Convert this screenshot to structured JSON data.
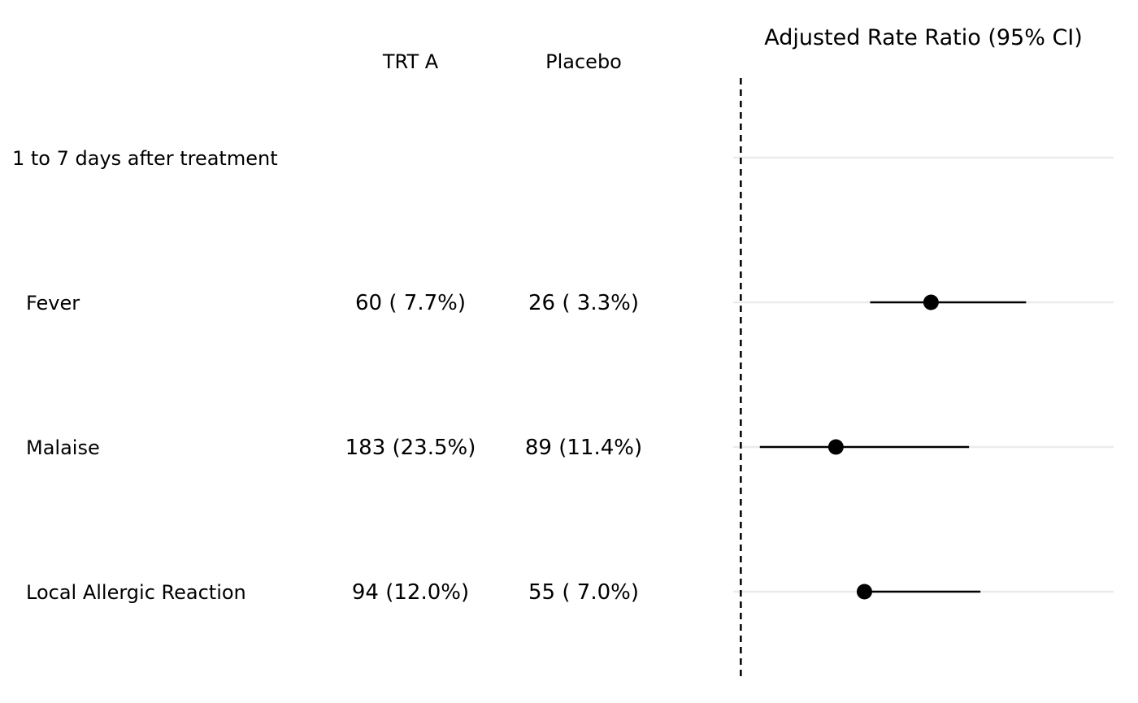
{
  "chart_data": {
    "type": "forest",
    "title": "Adjusted Rate Ratio (95% CI)",
    "columns": [
      "TRT A",
      "Placebo"
    ],
    "group_label": "1 to 7 days after treatment",
    "reference_value": 1,
    "xlim": [
      0.8,
      10.8
    ],
    "grid": true,
    "rows": [
      {
        "label": "Fever",
        "trt_a": "60 ( 7.7%)",
        "placebo": "26 ( 3.3%)",
        "estimate": 6.0,
        "lower": 4.4,
        "upper": 8.5
      },
      {
        "label": "Malaise",
        "trt_a": "183 (23.5%)",
        "placebo": "89 (11.4%)",
        "estimate": 3.5,
        "lower": 1.5,
        "upper": 7.0
      },
      {
        "label": "Local Allergic Reaction",
        "trt_a": "94 (12.0%)",
        "placebo": "55 ( 7.0%)",
        "estimate": 4.25,
        "lower": 4.25,
        "upper": 7.3
      }
    ]
  },
  "colors": {
    "marks": "#000000",
    "grid": "#ebebeb"
  }
}
